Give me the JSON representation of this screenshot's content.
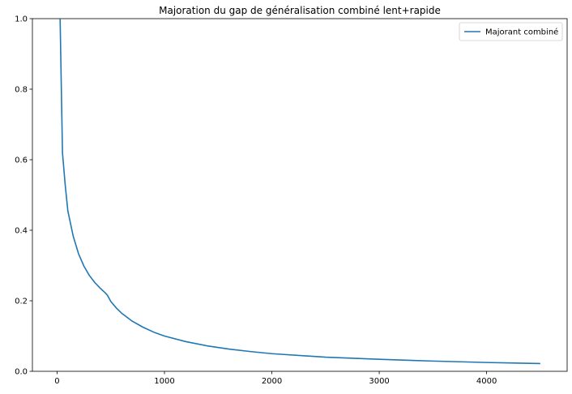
{
  "chart_data": {
    "type": "line",
    "title": "Majoration du gap de généralisation combiné lent+rapide",
    "xlabel": "",
    "ylabel": "",
    "xlim": [
      -230,
      4750
    ],
    "ylim": [
      0,
      1.0
    ],
    "x_ticks": [
      0,
      1000,
      2000,
      3000,
      4000
    ],
    "y_ticks": [
      0.0,
      0.2,
      0.4,
      0.6,
      0.8,
      1.0
    ],
    "x_tick_labels": [
      "0",
      "1000",
      "2000",
      "3000",
      "4000"
    ],
    "y_tick_labels": [
      "0.0",
      "0.2",
      "0.4",
      "0.6",
      "0.8",
      "1.0"
    ],
    "legend_position": "top-right",
    "grid": false,
    "series": [
      {
        "name": "Majorant combiné",
        "color": "#1f77b4",
        "x": [
          25,
          50,
          75,
          100,
          150,
          200,
          250,
          300,
          350,
          400,
          450,
          470,
          500,
          550,
          600,
          700,
          800,
          900,
          1000,
          1200,
          1400,
          1600,
          1800,
          2000,
          2500,
          3000,
          3500,
          4000,
          4500
        ],
        "y": [
          1.05,
          0.62,
          0.53,
          0.455,
          0.383,
          0.333,
          0.298,
          0.272,
          0.252,
          0.236,
          0.222,
          0.215,
          0.198,
          0.18,
          0.165,
          0.142,
          0.125,
          0.111,
          0.1,
          0.084,
          0.072,
          0.063,
          0.056,
          0.05,
          0.04,
          0.034,
          0.029,
          0.025,
          0.022
        ]
      }
    ]
  }
}
